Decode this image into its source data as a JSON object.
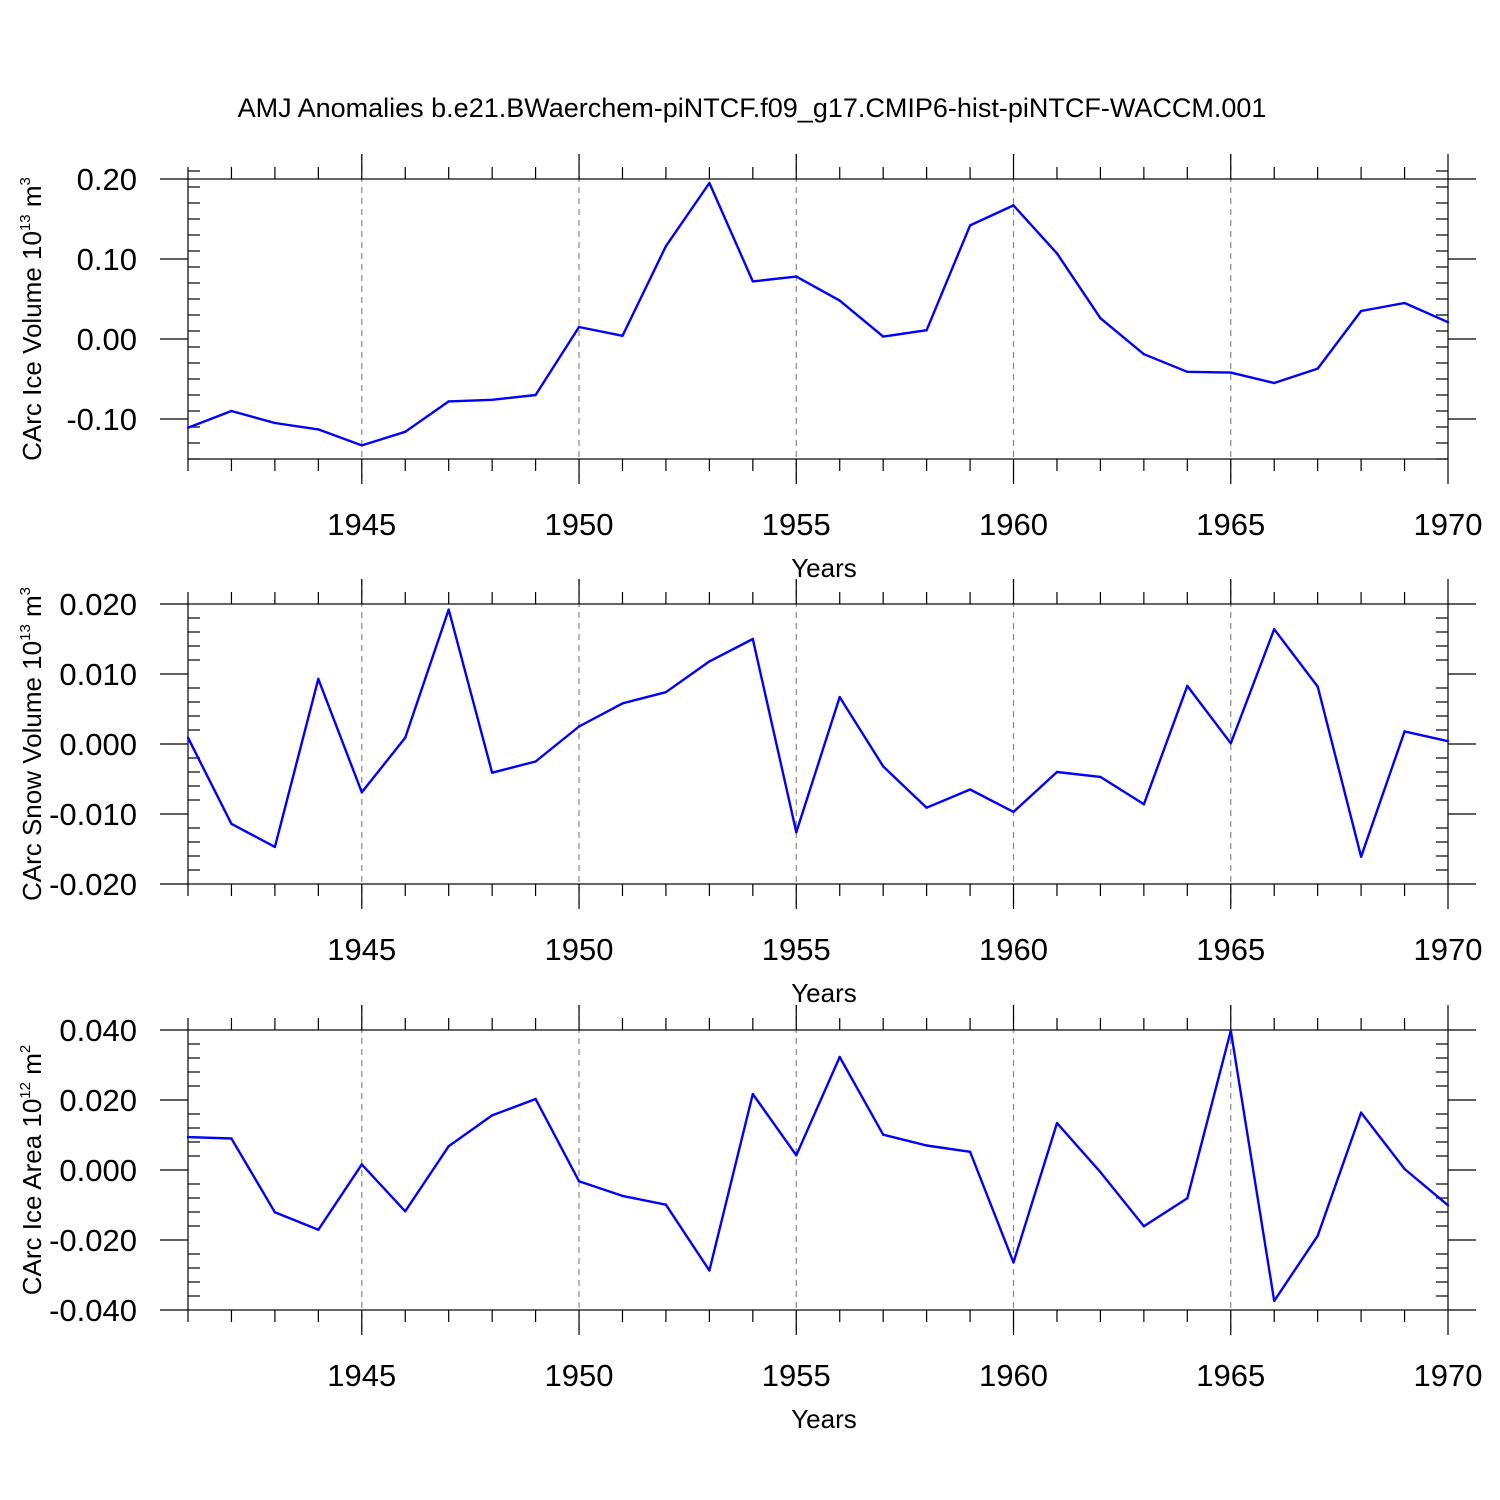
{
  "figure": {
    "title": "AMJ Anomalies b.e21.BWaerchem-piNTCF.f09_g17.CMIP6-hist-piNTCF-WACCM.001"
  },
  "chart_data": [
    {
      "type": "line",
      "title": "AMJ Anomalies b.e21.BWaerchem-piNTCF.f09_g17.CMIP6-hist-piNTCF-WACCM.001",
      "ylabel": {
        "base": "CArc Ice Volume 10",
        "exp": "13",
        "unit": " m",
        "unit_exp": "3"
      },
      "xlabel": "Years",
      "x": [
        1941,
        1942,
        1943,
        1944,
        1945,
        1946,
        1947,
        1948,
        1949,
        1950,
        1951,
        1952,
        1953,
        1954,
        1955,
        1956,
        1957,
        1958,
        1959,
        1960,
        1961,
        1962,
        1963,
        1964,
        1965,
        1966,
        1967,
        1968,
        1969,
        1970
      ],
      "series": [
        {
          "name": "CArc Ice Volume",
          "color": "#0000ff",
          "values": [
            -0.111,
            -0.09,
            -0.105,
            -0.113,
            -0.133,
            -0.116,
            -0.078,
            -0.076,
            -0.07,
            0.015,
            0.004,
            0.116,
            0.195,
            0.072,
            0.078,
            0.048,
            0.003,
            0.011,
            0.142,
            0.167,
            0.107,
            0.026,
            -0.019,
            -0.041,
            -0.042,
            -0.055,
            -0.037,
            0.035,
            0.045,
            0.021
          ]
        }
      ],
      "xlim": [
        1941,
        1970
      ],
      "ylim": [
        -0.15,
        0.2
      ],
      "yticks": [
        -0.1,
        0.0,
        0.1,
        0.2
      ],
      "ytick_labels": [
        "-0.10",
        "0.00",
        "0.10",
        "0.20"
      ],
      "yminor_step": 0.02,
      "xticks": [
        1945,
        1950,
        1955,
        1960,
        1965,
        1970
      ],
      "xtick_labels": [
        "1945",
        "1950",
        "1955",
        "1960",
        "1965",
        "1970"
      ],
      "grid": "vertical-dashed"
    },
    {
      "type": "line",
      "ylabel": {
        "base": "CArc Snow Volume 10",
        "exp": "13",
        "unit": " m",
        "unit_exp": "3"
      },
      "xlabel": "Years",
      "x": [
        1941,
        1942,
        1943,
        1944,
        1945,
        1946,
        1947,
        1948,
        1949,
        1950,
        1951,
        1952,
        1953,
        1954,
        1955,
        1956,
        1957,
        1958,
        1959,
        1960,
        1961,
        1962,
        1963,
        1964,
        1965,
        1966,
        1967,
        1968,
        1969,
        1970
      ],
      "series": [
        {
          "name": "CArc Snow Volume",
          "color": "#0000ff",
          "values": [
            0.0009,
            -0.0114,
            -0.0147,
            0.0093,
            -0.0069,
            0.0009,
            0.0192,
            -0.0041,
            -0.0025,
            0.0025,
            0.0058,
            0.0074,
            0.0118,
            0.015,
            -0.0126,
            0.0067,
            -0.0032,
            -0.0091,
            -0.0065,
            -0.0097,
            -0.004,
            -0.0047,
            -0.0086,
            0.0083,
            0.0001,
            0.0164,
            0.0082,
            -0.0161,
            0.0018,
            0.0004
          ]
        }
      ],
      "xlim": [
        1941,
        1970
      ],
      "ylim": [
        -0.02,
        0.02
      ],
      "yticks": [
        -0.02,
        -0.01,
        0.0,
        0.01,
        0.02
      ],
      "ytick_labels": [
        "-0.020",
        "-0.010",
        "0.000",
        "0.010",
        "0.020"
      ],
      "yminor_step": 0.002,
      "xticks": [
        1945,
        1950,
        1955,
        1960,
        1965,
        1970
      ],
      "xtick_labels": [
        "1945",
        "1950",
        "1955",
        "1960",
        "1965",
        "1970"
      ],
      "grid": "vertical-dashed"
    },
    {
      "type": "line",
      "ylabel": {
        "base": "CArc Ice Area 10",
        "exp": "12",
        "unit": " m",
        "unit_exp": "2"
      },
      "xlabel": "Years",
      "x": [
        1941,
        1942,
        1943,
        1944,
        1945,
        1946,
        1947,
        1948,
        1949,
        1950,
        1951,
        1952,
        1953,
        1954,
        1955,
        1956,
        1957,
        1958,
        1959,
        1960,
        1961,
        1962,
        1963,
        1964,
        1965,
        1966,
        1967,
        1968,
        1969,
        1970
      ],
      "series": [
        {
          "name": "CArc Ice Area",
          "color": "#0000ff",
          "values": [
            0.0094,
            0.009,
            -0.0121,
            -0.0171,
            0.0016,
            -0.0118,
            0.0068,
            0.0156,
            0.0203,
            -0.0032,
            -0.0074,
            -0.0099,
            -0.0287,
            0.0217,
            0.0042,
            0.0323,
            0.0101,
            0.007,
            0.0052,
            -0.0264,
            0.0134,
            -0.0006,
            -0.0161,
            -0.0081,
            0.0398,
            -0.0374,
            -0.0188,
            0.0164,
            0.0003,
            -0.0101
          ]
        }
      ],
      "xlim": [
        1941,
        1970
      ],
      "ylim": [
        -0.04,
        0.04
      ],
      "yticks": [
        -0.04,
        -0.02,
        0.0,
        0.02,
        0.04
      ],
      "ytick_labels": [
        "-0.040",
        "-0.020",
        "0.000",
        "0.020",
        "0.040"
      ],
      "yminor_step": 0.004,
      "xticks": [
        1945,
        1950,
        1955,
        1960,
        1965,
        1970
      ],
      "xtick_labels": [
        "1945",
        "1950",
        "1955",
        "1960",
        "1965",
        "1970"
      ],
      "grid": "vertical-dashed"
    }
  ]
}
